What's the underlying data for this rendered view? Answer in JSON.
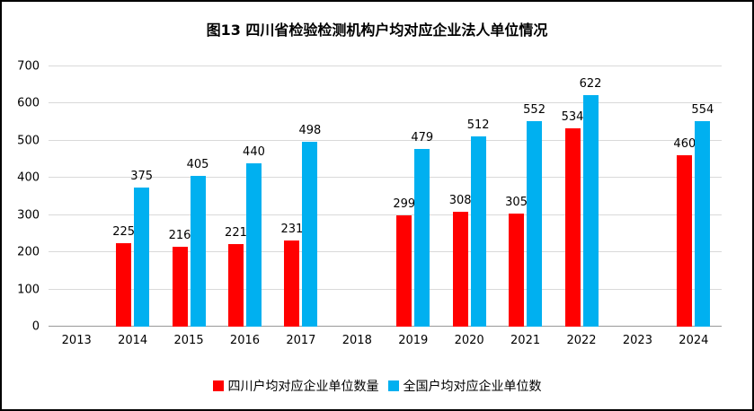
{
  "chart_data": {
    "type": "bar",
    "title": "图13  四川省检验检测机构户均对应企业法人单位情况",
    "categories": [
      "2013",
      "2014",
      "2015",
      "2016",
      "2017",
      "2018",
      "2019",
      "2020",
      "2021",
      "2022",
      "2023",
      "2024"
    ],
    "series": [
      {
        "name": "四川户均对应企业单位数量",
        "color": "#FF0000",
        "values": [
          null,
          225,
          216,
          221,
          231,
          null,
          299,
          308,
          305,
          534,
          null,
          460
        ]
      },
      {
        "name": "全国户均对应企业单位数",
        "color": "#00B0F0",
        "values": [
          null,
          375,
          405,
          440,
          498,
          null,
          479,
          512,
          552,
          622,
          null,
          554
        ]
      }
    ],
    "xlabel": "",
    "ylabel": "",
    "ylim": [
      0,
      700
    ],
    "ytick_step": 100,
    "grid": true,
    "legend_position": "bottom",
    "data_labels": true
  }
}
